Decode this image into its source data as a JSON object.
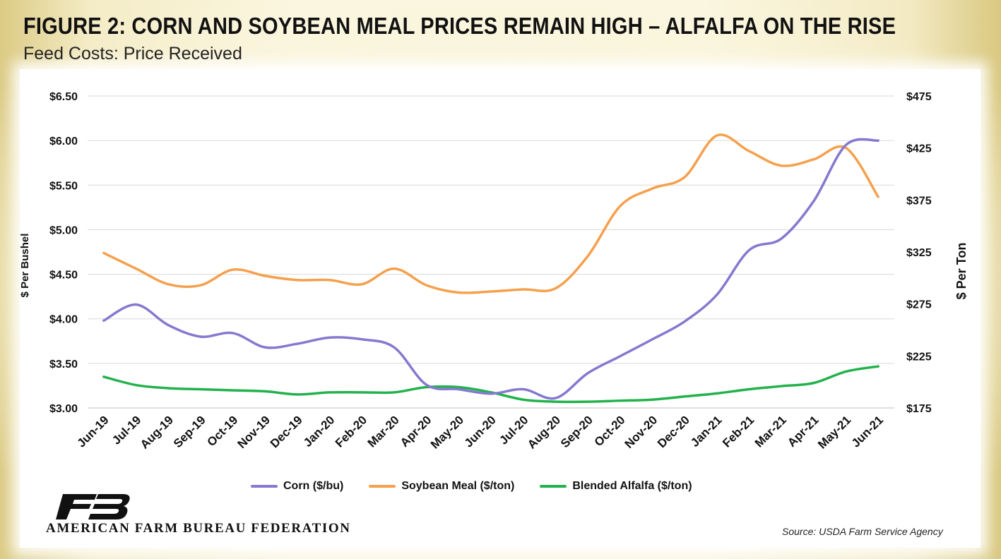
{
  "header": {
    "title": "FIGURE 2: CORN AND SOYBEAN MEAL PRICES REMAIN HIGH – ALFALFA ON THE RISE",
    "subtitle": "Feed Costs: Price Received"
  },
  "footer": {
    "org": "AMERICAN FARM BUREAU FEDERATION",
    "source": "Source: USDA Farm Service Agency"
  },
  "colors": {
    "corn": "#8579cf",
    "soybean_meal": "#f5a04c",
    "alfalfa": "#22b24c",
    "grid": "#d9d9d9",
    "logo": "#111111"
  },
  "chart_data": {
    "type": "line",
    "title": "FIGURE 2: CORN AND SOYBEAN MEAL PRICES REMAIN HIGH – ALFALFA ON THE RISE",
    "subtitle": "Feed Costs: Price Received",
    "categories": [
      "Jun-19",
      "Jul-19",
      "Aug-19",
      "Sep-19",
      "Oct-19",
      "Nov-19",
      "Dec-19",
      "Jan-20",
      "Feb-20",
      "Mar-20",
      "Apr-20",
      "May-20",
      "Jun-20",
      "Jul-20",
      "Aug-20",
      "Sep-20",
      "Oct-20",
      "Nov-20",
      "Dec-20",
      "Jan-21",
      "Feb-21",
      "Mar-21",
      "Apr-21",
      "May-21",
      "Jun-21"
    ],
    "left_axis": {
      "label": "$ Per Bushel",
      "ylim": [
        3.0,
        6.5
      ],
      "ticks": [
        3.0,
        3.5,
        4.0,
        4.5,
        5.0,
        5.5,
        6.0,
        6.5
      ],
      "tick_labels": [
        "$3.00",
        "$3.50",
        "$4.00",
        "$4.50",
        "$5.00",
        "$5.50",
        "$6.00",
        "$6.50"
      ]
    },
    "right_axis": {
      "label": "$ Per Ton",
      "ylim": [
        175,
        475
      ],
      "ticks": [
        175,
        225,
        275,
        325,
        375,
        425,
        475
      ],
      "tick_labels": [
        "$175",
        "$225",
        "$275",
        "$325",
        "$375",
        "$425",
        "$475"
      ]
    },
    "grid": true,
    "legend_position": "bottom",
    "series": [
      {
        "name": "Corn ($/bu)",
        "axis": "left",
        "color": "#8579cf",
        "values": [
          3.98,
          4.16,
          3.93,
          3.8,
          3.84,
          3.68,
          3.72,
          3.79,
          3.77,
          3.68,
          3.26,
          3.21,
          3.16,
          3.21,
          3.11,
          3.39,
          3.58,
          3.77,
          3.97,
          4.27,
          4.77,
          4.9,
          5.32,
          5.95,
          6.0
        ]
      },
      {
        "name": "Soybean Meal ($/ton)",
        "axis": "right",
        "color": "#f5a04c",
        "values": [
          324,
          309,
          294,
          293,
          308,
          302,
          298,
          298,
          294,
          309,
          293,
          286,
          287,
          289,
          290,
          321,
          369,
          386,
          397,
          437,
          422,
          408,
          414,
          425,
          378
        ]
      },
      {
        "name": "Blended Alfalfa ($/ton)",
        "axis": "right",
        "color": "#22b24c",
        "values": [
          205,
          197,
          194,
          193,
          192,
          191,
          188,
          190,
          190,
          190,
          195,
          195,
          190,
          183,
          181,
          181,
          182,
          183,
          186,
          189,
          193,
          196,
          199,
          210,
          215
        ]
      }
    ]
  }
}
